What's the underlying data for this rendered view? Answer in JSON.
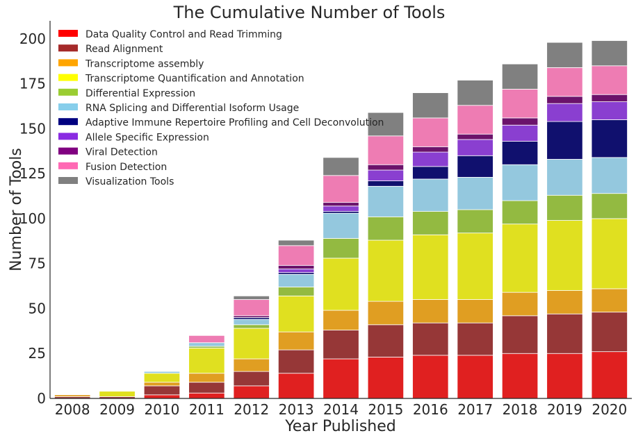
{
  "chart_data": {
    "type": "bar",
    "stacked": true,
    "title": "The Cumulative Number of Tools",
    "xlabel": "Year Published",
    "ylabel": "Number of Tools",
    "ylim": [
      0,
      210
    ],
    "yticks": [
      0,
      25,
      50,
      75,
      100,
      125,
      150,
      175,
      200
    ],
    "legend_position": "top-left",
    "grid": false,
    "categories": [
      "2008",
      "2009",
      "2010",
      "2011",
      "2012",
      "2013",
      "2014",
      "2015",
      "2016",
      "2017",
      "2018",
      "2019",
      "2020"
    ],
    "series": [
      {
        "name": "Data Quality Control and Read Trimming",
        "color": "#e02020",
        "legend_color": "#ff0000",
        "values": [
          0,
          0,
          2,
          3,
          7,
          14,
          22,
          23,
          24,
          24,
          25,
          25,
          26
        ]
      },
      {
        "name": "Read Alignment",
        "color": "#963737",
        "legend_color": "#a52a2a",
        "values": [
          1,
          1,
          5,
          6,
          8,
          13,
          16,
          18,
          18,
          18,
          21,
          22,
          22
        ]
      },
      {
        "name": "Transcriptome assembly",
        "color": "#e09e22",
        "legend_color": "#ffa500",
        "values": [
          1,
          0,
          2,
          5,
          7,
          10,
          11,
          13,
          13,
          13,
          13,
          13,
          13
        ]
      },
      {
        "name": "Transcriptome Quantification and Annotation",
        "color": "#e0e020",
        "legend_color": "#ffff00",
        "values": [
          0,
          3,
          5,
          14,
          17,
          20,
          29,
          34,
          36,
          37,
          38,
          39,
          39
        ]
      },
      {
        "name": "Differential Expression",
        "color": "#93ba41",
        "legend_color": "#9acd32",
        "values": [
          0,
          0,
          0,
          1,
          2,
          5,
          11,
          13,
          13,
          13,
          13,
          14,
          14
        ]
      },
      {
        "name": "RNA Splicing and Differential Isoform Usage",
        "color": "#94c8de",
        "legend_color": "#87ceeb",
        "values": [
          0,
          0,
          1,
          2,
          3,
          7,
          14,
          17,
          18,
          18,
          20,
          20,
          20
        ]
      },
      {
        "name": "Adaptive Immune Repertoire Profiling and Cell Deconvolution",
        "color": "#10106e",
        "legend_color": "#000080",
        "values": [
          0,
          0,
          0,
          0,
          1,
          1,
          1,
          3,
          7,
          12,
          13,
          21,
          21
        ]
      },
      {
        "name": "Allele Specific Expression",
        "color": "#8a3fd0",
        "legend_color": "#8a2be2",
        "values": [
          0,
          0,
          0,
          0,
          0,
          2,
          3,
          6,
          8,
          9,
          9,
          10,
          10
        ]
      },
      {
        "name": "Viral Detection",
        "color": "#6b136b",
        "legend_color": "#800080",
        "values": [
          0,
          0,
          0,
          0,
          1,
          2,
          2,
          3,
          3,
          3,
          4,
          4,
          4
        ]
      },
      {
        "name": "Fusion Detection",
        "color": "#ee7cb3",
        "legend_color": "#ff69b4",
        "values": [
          0,
          0,
          0,
          4,
          9,
          11,
          15,
          16,
          16,
          16,
          16,
          16,
          16
        ]
      },
      {
        "name": "Visualization Tools",
        "color": "#808080",
        "legend_color": "#808080",
        "values": [
          0,
          0,
          0,
          0,
          2,
          3,
          10,
          13,
          14,
          14,
          14,
          14,
          14
        ]
      }
    ]
  }
}
